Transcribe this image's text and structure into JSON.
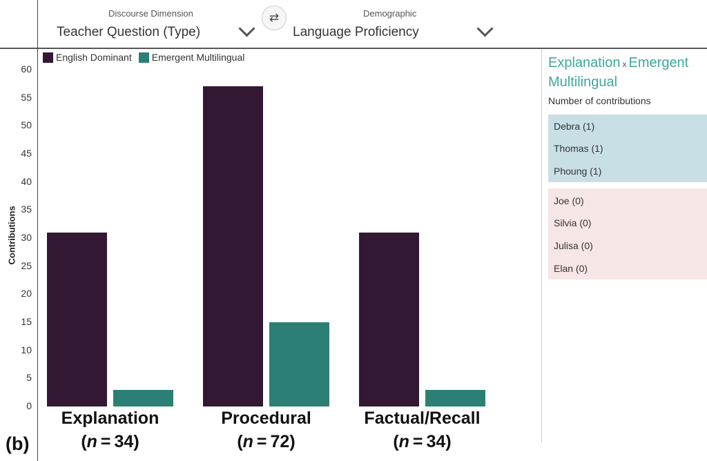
{
  "header": {
    "dimension_caption": "Discourse Dimension",
    "dimension_value": "Teacher Question (Type)",
    "demographic_caption": "Demographic",
    "demographic_value": "Language Proficiency",
    "swap_symbol": "⇄"
  },
  "panel_label": "(b)",
  "chart_data": {
    "type": "bar",
    "categories": [
      "Explanation",
      "Procedural",
      "Factual/Recall"
    ],
    "category_n": [
      "34",
      "72",
      "34"
    ],
    "series": [
      {
        "name": "English Dominant",
        "color": "#331833",
        "values": [
          31,
          57,
          31
        ]
      },
      {
        "name": "Emergent Multilingual",
        "color": "#2c7f74",
        "values": [
          3,
          15,
          3
        ]
      }
    ],
    "ylabel": "Contributions",
    "xlabel": "",
    "ylim": [
      0,
      60
    ],
    "yticks": [
      0,
      5,
      10,
      15,
      20,
      25,
      30,
      35,
      40,
      45,
      50,
      55,
      60
    ],
    "grid": false,
    "legend_position": "top-left"
  },
  "detail": {
    "title_category": "Explanation",
    "title_sep": "x",
    "title_group": "Emergent Multilingual",
    "subtitle": "Number of contributions",
    "contributors": [
      {
        "label": "Debra (1)"
      },
      {
        "label": "Thomas (1)"
      },
      {
        "label": "Phoung (1)"
      }
    ],
    "non_contributors": [
      {
        "label": "Joe (0)"
      },
      {
        "label": "Silvia (0)"
      },
      {
        "label": "Julisa (0)"
      },
      {
        "label": "Elan (0)"
      }
    ],
    "contributor_bg": "#c9dfe6",
    "non_contributor_bg": "#f7e6e6",
    "title_color": "#3aa99a"
  }
}
